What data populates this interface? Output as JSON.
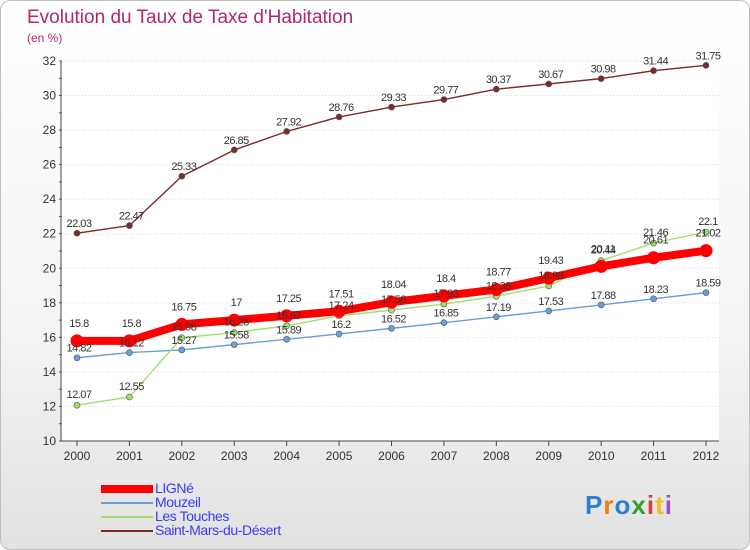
{
  "title": "Evolution du Taux de Taxe d'Habitation",
  "subtitle": "(en %)",
  "logo": {
    "text": "Proxiti",
    "colors": [
      "#2f7fd1",
      "#f07b16",
      "#2f7fd1",
      "#33a030",
      "#e13b3b",
      "#f0c020",
      "#9b4fc9"
    ]
  },
  "chart_data": {
    "type": "line",
    "title": "Evolution du Taux de Taxe d'Habitation",
    "ylabel": "(en %)",
    "xlabel": "",
    "x": [
      "2000",
      "2001",
      "2002",
      "2003",
      "2004",
      "2005",
      "2006",
      "2007",
      "2008",
      "2009",
      "2010",
      "2011",
      "2012"
    ],
    "ylim": [
      10,
      32
    ],
    "yticks": [
      "10",
      "12",
      "14",
      "16",
      "18",
      "20",
      "22",
      "24",
      "26",
      "28",
      "30",
      "32"
    ],
    "grid": "horizontal",
    "legend_position": "bottom-left",
    "series": [
      {
        "name": "LIGNé",
        "color": "#ff0000",
        "values": [
          15.8,
          15.8,
          16.75,
          17,
          17.25,
          17.51,
          18.04,
          18.4,
          18.77,
          19.43,
          20.11,
          20.61,
          21.02
        ],
        "labels": [
          "15.8",
          "15.8",
          "16.75",
          "17",
          "17.25",
          "17.51",
          "18.04",
          "18.4",
          "18.77",
          "19.43",
          "20.11",
          "20.61",
          "21.02"
        ]
      },
      {
        "name": "Mouzeil",
        "color": "#6b9fd8",
        "values": [
          14.82,
          15.12,
          15.27,
          15.58,
          15.89,
          16.2,
          16.52,
          16.85,
          17.19,
          17.53,
          17.88,
          18.23,
          18.59
        ],
        "labels": [
          "14.82",
          "15.12",
          "15.27",
          "15.58",
          "15.89",
          "16.2",
          "16.52",
          "16.85",
          "17.19",
          "17.53",
          "17.88",
          "18.23",
          "18.59"
        ]
      },
      {
        "name": "Les Touches",
        "color": "#9fe06b",
        "values": [
          12.07,
          12.55,
          15.98,
          16.28,
          16.67,
          17.24,
          17.58,
          17.93,
          18.38,
          18.98,
          20.44,
          21.46,
          22.1
        ],
        "labels": [
          "12.07",
          "12.55",
          "15.98",
          "16.28",
          "16.67",
          "17.24",
          "17.58",
          "17.93",
          "18.38",
          "18.98",
          "20.44",
          "21.46",
          "22.1"
        ]
      },
      {
        "name": "Saint-Mars-du-Désert",
        "color": "#7a2a2a",
        "values": [
          22.03,
          22.47,
          25.33,
          26.85,
          27.92,
          28.76,
          29.33,
          29.77,
          30.37,
          30.67,
          30.98,
          31.44,
          31.75
        ],
        "labels": [
          "22.03",
          "22.47",
          "25.33",
          "26.85",
          "27.92",
          "28.76",
          "29.33",
          "29.77",
          "30.37",
          "30.67",
          "30.98",
          "31.44",
          "31.75"
        ]
      }
    ]
  }
}
